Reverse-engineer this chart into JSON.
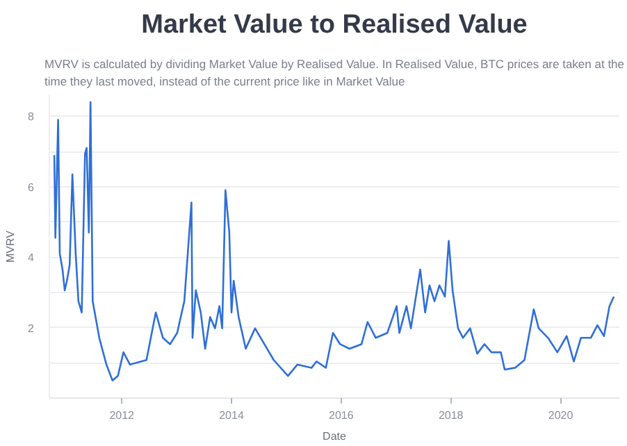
{
  "chart_data": {
    "type": "line",
    "title": "Market Value to Realised Value",
    "subtitle": "MVRV is calculated by dividing Market Value by Realised Value. In Realised Value, BTC prices are taken at the time they last moved, instead of the current price like in Market Value",
    "xlabel": "Date",
    "ylabel": "MVRV",
    "x": [
      2010.77,
      2010.79,
      2010.83,
      2010.84,
      2010.87,
      2010.92,
      2010.96,
      2011.0,
      2011.05,
      2011.1,
      2011.16,
      2011.21,
      2011.27,
      2011.33,
      2011.36,
      2011.4,
      2011.43,
      2011.47,
      2011.59,
      2011.72,
      2011.83,
      2011.93,
      2012.03,
      2012.15,
      2012.45,
      2012.62,
      2012.75,
      2012.88,
      2013.01,
      2013.14,
      2013.27,
      2013.29,
      2013.35,
      2013.44,
      2013.52,
      2013.61,
      2013.7,
      2013.78,
      2013.83,
      2013.89,
      2013.96,
      2014.0,
      2014.04,
      2014.13,
      2014.26,
      2014.43,
      2014.6,
      2014.77,
      2015.03,
      2015.2,
      2015.46,
      2015.55,
      2015.72,
      2015.85,
      2015.98,
      2016.15,
      2016.37,
      2016.48,
      2016.63,
      2016.84,
      2017.01,
      2017.06,
      2017.19,
      2017.27,
      2017.44,
      2017.53,
      2017.61,
      2017.7,
      2017.79,
      2017.89,
      2017.96,
      2018.03,
      2018.13,
      2018.22,
      2018.35,
      2018.48,
      2018.61,
      2018.74,
      2018.91,
      2018.98,
      2019.17,
      2019.34,
      2019.51,
      2019.6,
      2019.77,
      2019.94,
      2020.11,
      2020.24,
      2020.37,
      2020.55,
      2020.67,
      2020.79,
      2020.89,
      2020.97
    ],
    "series": [
      {
        "color": "#2f6fd6",
        "values": [
          6.9,
          4.55,
          7.25,
          7.9,
          4.1,
          3.65,
          3.06,
          3.33,
          3.78,
          6.35,
          4.1,
          2.75,
          2.43,
          6.94,
          7.1,
          4.7,
          8.4,
          2.75,
          1.71,
          0.95,
          0.5,
          0.63,
          1.3,
          0.95,
          1.08,
          2.43,
          1.71,
          1.53,
          1.85,
          2.75,
          5.55,
          1.71,
          3.06,
          2.43,
          1.4,
          2.3,
          1.98,
          2.61,
          1.98,
          5.9,
          4.7,
          2.43,
          3.33,
          2.3,
          1.4,
          1.98,
          1.53,
          1.08,
          0.63,
          0.95,
          0.86,
          1.04,
          0.86,
          1.85,
          1.53,
          1.4,
          1.53,
          2.16,
          1.71,
          1.85,
          2.61,
          1.85,
          2.61,
          1.98,
          3.65,
          2.43,
          3.2,
          2.75,
          3.2,
          2.88,
          4.46,
          3.06,
          1.98,
          1.71,
          1.98,
          1.26,
          1.53,
          1.3,
          1.3,
          0.81,
          0.86,
          1.08,
          2.52,
          1.98,
          1.71,
          1.3,
          1.76,
          1.04,
          1.71,
          1.71,
          2.07,
          1.76,
          2.61,
          2.88
        ]
      }
    ],
    "xlim": [
      2010.68,
      2021.07
    ],
    "ylim": [
      0,
      8.6
    ],
    "xticks": [
      2012,
      2014,
      2016,
      2018,
      2020
    ],
    "yticks": [
      {
        "value": 1,
        "label": null
      },
      2,
      {
        "value": 3,
        "label": null
      },
      4,
      {
        "value": 5,
        "label": null
      },
      6,
      {
        "value": 7,
        "label": null
      },
      8
    ],
    "grid": "y",
    "marker": "none",
    "line_style": "solid"
  }
}
